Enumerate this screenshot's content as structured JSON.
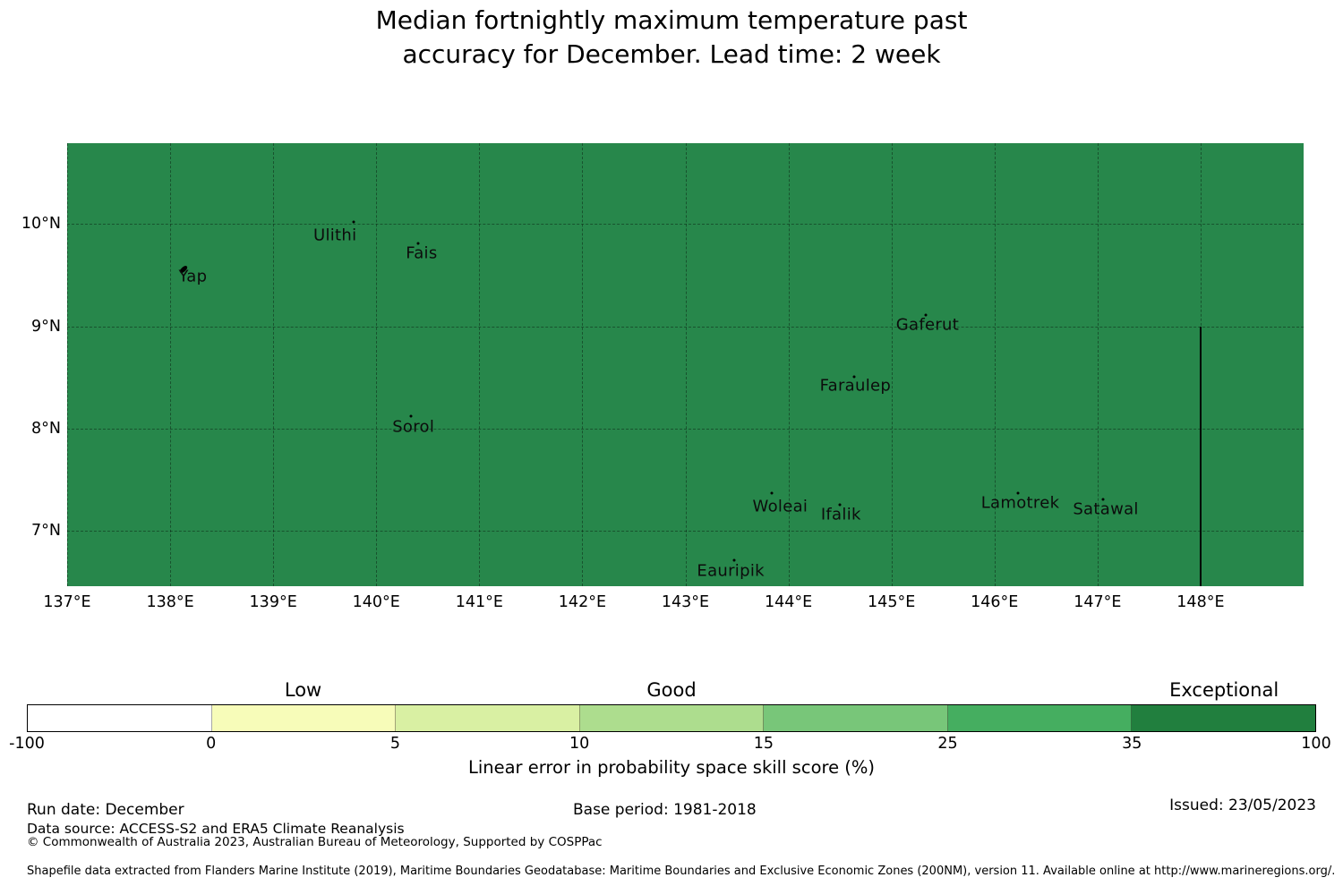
{
  "title": {
    "line1": "Median fortnightly maximum temperature past",
    "line2": "accuracy for December. Lead time: 2 week"
  },
  "chart_data": {
    "type": "map",
    "title": "Median fortnightly maximum temperature past accuracy for December. Lead time: 2 week",
    "x_axis": {
      "tick_labels": [
        "137°E",
        "138°E",
        "139°E",
        "140°E",
        "141°E",
        "142°E",
        "143°E",
        "144°E",
        "145°E",
        "146°E",
        "147°E",
        "148°E"
      ],
      "tick_lons": [
        137,
        138,
        139,
        140,
        141,
        142,
        143,
        144,
        145,
        146,
        147,
        148
      ],
      "range": [
        137,
        149.0
      ]
    },
    "y_axis": {
      "tick_labels": [
        "10°N",
        "9°N",
        "8°N",
        "7°N"
      ],
      "tick_lats": [
        10,
        9,
        8,
        7
      ],
      "range": [
        6.46,
        10.79
      ]
    },
    "grid": true,
    "fill_color": "#27874b",
    "fill_skill_class": "Exceptional (35-100%)",
    "islands": [
      {
        "name": "Yap",
        "lon": 138.22,
        "lat": 9.49,
        "marker": {
          "lon": 138.13,
          "lat": 9.56,
          "type": "islet"
        }
      },
      {
        "name": "Ulithi",
        "lon": 139.6,
        "lat": 9.89,
        "marker": {
          "lon": 139.78,
          "lat": 10.02,
          "type": "dot"
        }
      },
      {
        "name": "Fais",
        "lon": 140.44,
        "lat": 9.71,
        "marker": {
          "lon": 140.41,
          "lat": 9.81,
          "type": "dot"
        }
      },
      {
        "name": "Sorol",
        "lon": 140.36,
        "lat": 8.02,
        "marker": {
          "lon": 140.34,
          "lat": 8.12,
          "type": "dot"
        }
      },
      {
        "name": "Gaferut",
        "lon": 145.35,
        "lat": 9.01,
        "marker": {
          "lon": 145.33,
          "lat": 9.11,
          "type": "dot"
        }
      },
      {
        "name": "Faraulep",
        "lon": 144.65,
        "lat": 8.42,
        "marker": {
          "lon": 144.64,
          "lat": 8.51,
          "type": "dot"
        }
      },
      {
        "name": "Woleai",
        "lon": 143.92,
        "lat": 7.24,
        "marker": {
          "lon": 143.84,
          "lat": 7.37,
          "type": "dot"
        }
      },
      {
        "name": "Ifalik",
        "lon": 144.51,
        "lat": 7.16,
        "marker": {
          "lon": 144.5,
          "lat": 7.26,
          "type": "dot"
        }
      },
      {
        "name": "Lamotrek",
        "lon": 146.25,
        "lat": 7.27,
        "marker": {
          "lon": 146.23,
          "lat": 7.37,
          "type": "dot"
        }
      },
      {
        "name": "Satawal",
        "lon": 147.08,
        "lat": 7.21,
        "marker": {
          "lon": 147.05,
          "lat": 7.31,
          "type": "dot"
        }
      },
      {
        "name": "Eauripik",
        "lon": 143.44,
        "lat": 6.61,
        "marker": {
          "lon": 143.47,
          "lat": 6.71,
          "type": "dot"
        }
      }
    ],
    "eez_boundary_line": {
      "lon": 148.0,
      "lat_start": 9.0,
      "lat_end": 6.46,
      "color": "#000000"
    },
    "colorbar": {
      "tick_labels": [
        "-100",
        "0",
        "5",
        "10",
        "15",
        "25",
        "35",
        "100"
      ],
      "segment_colors": [
        "#ffffff",
        "#f7fcb9",
        "#d9f0a3",
        "#addd8e",
        "#78c679",
        "#45ae60",
        "#217f3e"
      ],
      "category_labels": [
        {
          "text": "Low",
          "segment_index": 1
        },
        {
          "text": "Good",
          "segment_index": 3
        },
        {
          "text": "Exceptional",
          "segment_index": 6
        }
      ],
      "axis_label": "Linear error in probability space skill score (%)"
    }
  },
  "footer": {
    "run_date": "Run date: December",
    "base_period": "Base period: 1981-2018",
    "issued": "Issued: 23/05/2023",
    "data_source": "Data source: ACCESS-S2 and ERA5 Climate Reanalysis",
    "copyright": "© Commonwealth of Australia 2023, Australian Bureau of Meteorology, Supported by COSPPac",
    "shapefile_note": "Shapefile data extracted from Flanders Marine Institute (2019), Maritime Boundaries Geodatabase: Maritime Boundaries and Exclusive Economic Zones (200NM), version 11. Available online at http://www.marineregions.org/."
  }
}
